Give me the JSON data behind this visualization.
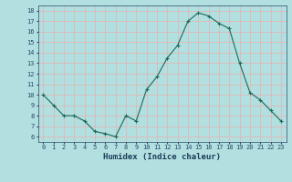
{
  "x": [
    0,
    1,
    2,
    3,
    4,
    5,
    6,
    7,
    8,
    9,
    10,
    11,
    12,
    13,
    14,
    15,
    16,
    17,
    18,
    19,
    20,
    21,
    22,
    23
  ],
  "y": [
    10.0,
    9.0,
    8.0,
    8.0,
    7.5,
    6.5,
    6.3,
    6.0,
    8.0,
    7.5,
    10.5,
    11.7,
    13.5,
    14.7,
    17.0,
    17.8,
    17.5,
    16.8,
    16.3,
    13.0,
    10.2,
    9.5,
    8.5,
    7.5
  ],
  "xlabel": "Humidex (Indice chaleur)",
  "xlim": [
    -0.5,
    23.5
  ],
  "ylim": [
    5.5,
    18.5
  ],
  "yticks": [
    6,
    7,
    8,
    9,
    10,
    11,
    12,
    13,
    14,
    15,
    16,
    17,
    18
  ],
  "xticks": [
    0,
    1,
    2,
    3,
    4,
    5,
    6,
    7,
    8,
    9,
    10,
    11,
    12,
    13,
    14,
    15,
    16,
    17,
    18,
    19,
    20,
    21,
    22,
    23
  ],
  "line_color": "#1a6b5a",
  "marker_color": "#1a6b5a",
  "bg_color": "#b2dfdf",
  "grid_major_color": "#e8b0b0",
  "grid_minor_color": "#e8b0b0",
  "tick_label_color": "#2a4a6a",
  "xlabel_color": "#1a3c5a",
  "tick_fontsize": 5.0,
  "xlabel_fontsize": 6.5
}
